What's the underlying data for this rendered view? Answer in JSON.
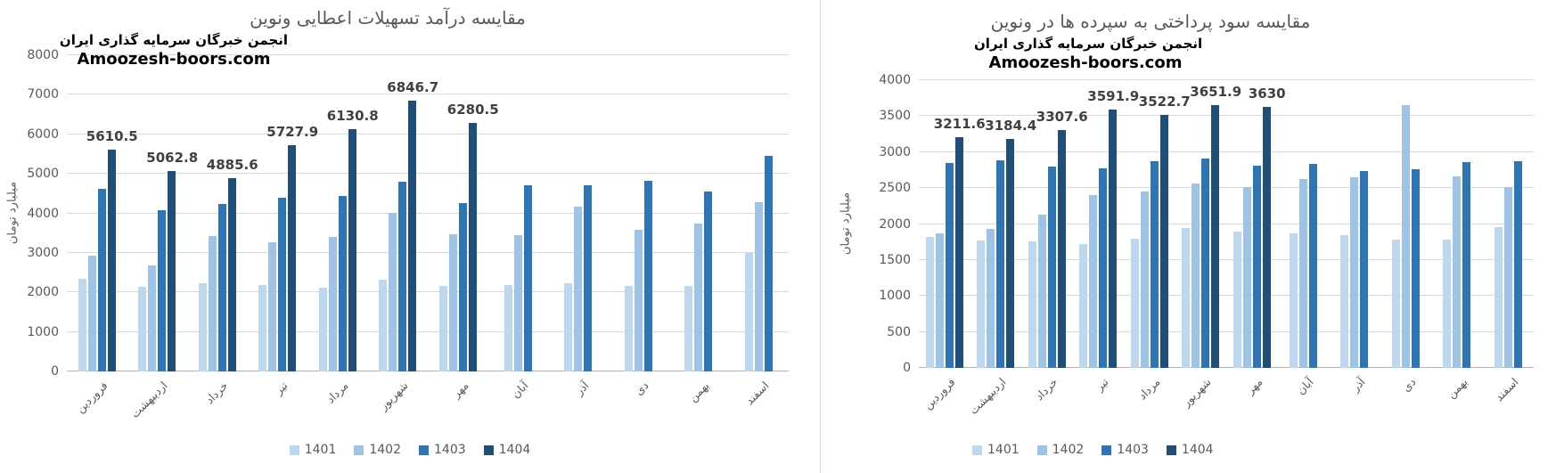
{
  "watermark": {
    "line1": "انجمن خبرگان سرمایه گذاری ایران",
    "line2": "Amoozesh-boors.com"
  },
  "chart_data": [
    {
      "type": "bar",
      "title": "مقایسه درآمد تسهیلات اعطایی  ونوین",
      "xlabel": "",
      "ylabel": "میلیارد تومان",
      "ylim": [
        0,
        8000
      ],
      "yticks": [
        0,
        1000,
        2000,
        3000,
        4000,
        5000,
        6000,
        7000,
        8000
      ],
      "grid": true,
      "legend_position": "bottom",
      "legend": [
        "1401",
        "1402",
        "1403",
        "1404"
      ],
      "categories": [
        "فروردین",
        "اردیبهشت",
        "خرداد",
        "تیر",
        "مرداد",
        "شهریور",
        "مهر",
        "آبان",
        "آذر",
        "دی",
        "بهمن",
        "اسفند"
      ],
      "series": [
        {
          "name": "1401",
          "color": "#bdd7ee",
          "values": [
            2350,
            2130,
            2230,
            2190,
            2110,
            2330,
            2160,
            2190,
            2230,
            2160,
            2170,
            2990
          ]
        },
        {
          "name": "1402",
          "color": "#9dc3e6",
          "values": [
            2920,
            2680,
            3420,
            3260,
            3400,
            4020,
            3460,
            3440,
            4170,
            3580,
            3730,
            4290
          ]
        },
        {
          "name": "1403",
          "color": "#2e75b6",
          "values": [
            4620,
            4080,
            4240,
            4390,
            4430,
            4800,
            4270,
            4700,
            4720,
            4820,
            4560,
            5450
          ]
        },
        {
          "name": "1404",
          "color": "#1f4e79",
          "values": [
            5610.5,
            5062.8,
            4885.6,
            5727.9,
            6130.8,
            6846.7,
            6280.5,
            null,
            null,
            null,
            null,
            null
          ],
          "labels": [
            "5610.5",
            "5062.8",
            "4885.6",
            "5727.9",
            "6130.8",
            "6846.7",
            "6280.5",
            null,
            null,
            null,
            null,
            null
          ]
        }
      ]
    },
    {
      "type": "bar",
      "title": "مقایسه سود پرداختی به سپرده ها در ونوین",
      "xlabel": "",
      "ylabel": "میلیارد تومان",
      "ylim": [
        0,
        4000
      ],
      "yticks": [
        0,
        500,
        1000,
        1500,
        2000,
        2500,
        3000,
        3500,
        4000
      ],
      "grid": true,
      "legend_position": "bottom",
      "legend": [
        "1401",
        "1402",
        "1403",
        "1404"
      ],
      "categories": [
        "فروردین",
        "اردیبهشت",
        "خرداد",
        "تیر",
        "مرداد",
        "شهریور",
        "مهر",
        "آبان",
        "آذر",
        "دی",
        "بهمن",
        "اسفند"
      ],
      "series": [
        {
          "name": "1401",
          "color": "#bdd7ee",
          "values": [
            1815,
            1775,
            1755,
            1725,
            1795,
            1940,
            1900,
            1870,
            1845,
            1780,
            1780,
            1960
          ]
        },
        {
          "name": "1402",
          "color": "#9dc3e6",
          "values": [
            1870,
            1935,
            2130,
            2405,
            2455,
            2560,
            2520,
            2630,
            2650,
            3655,
            2665,
            2510
          ]
        },
        {
          "name": "1403",
          "color": "#2e75b6",
          "values": [
            2850,
            2880,
            2800,
            2780,
            2870,
            2915,
            2815,
            2830,
            2735,
            2765,
            2855,
            2870
          ]
        },
        {
          "name": "1404",
          "color": "#1f4e79",
          "values": [
            3211.6,
            3184.4,
            3307.6,
            3591.9,
            3522.7,
            3651.9,
            3630,
            null,
            null,
            null,
            null,
            null
          ],
          "labels": [
            "3211.6",
            "3184.4",
            "3307.6",
            "3591.9",
            "3522.7",
            "3651.9",
            "3630",
            null,
            null,
            null,
            null,
            null
          ]
        }
      ]
    }
  ]
}
